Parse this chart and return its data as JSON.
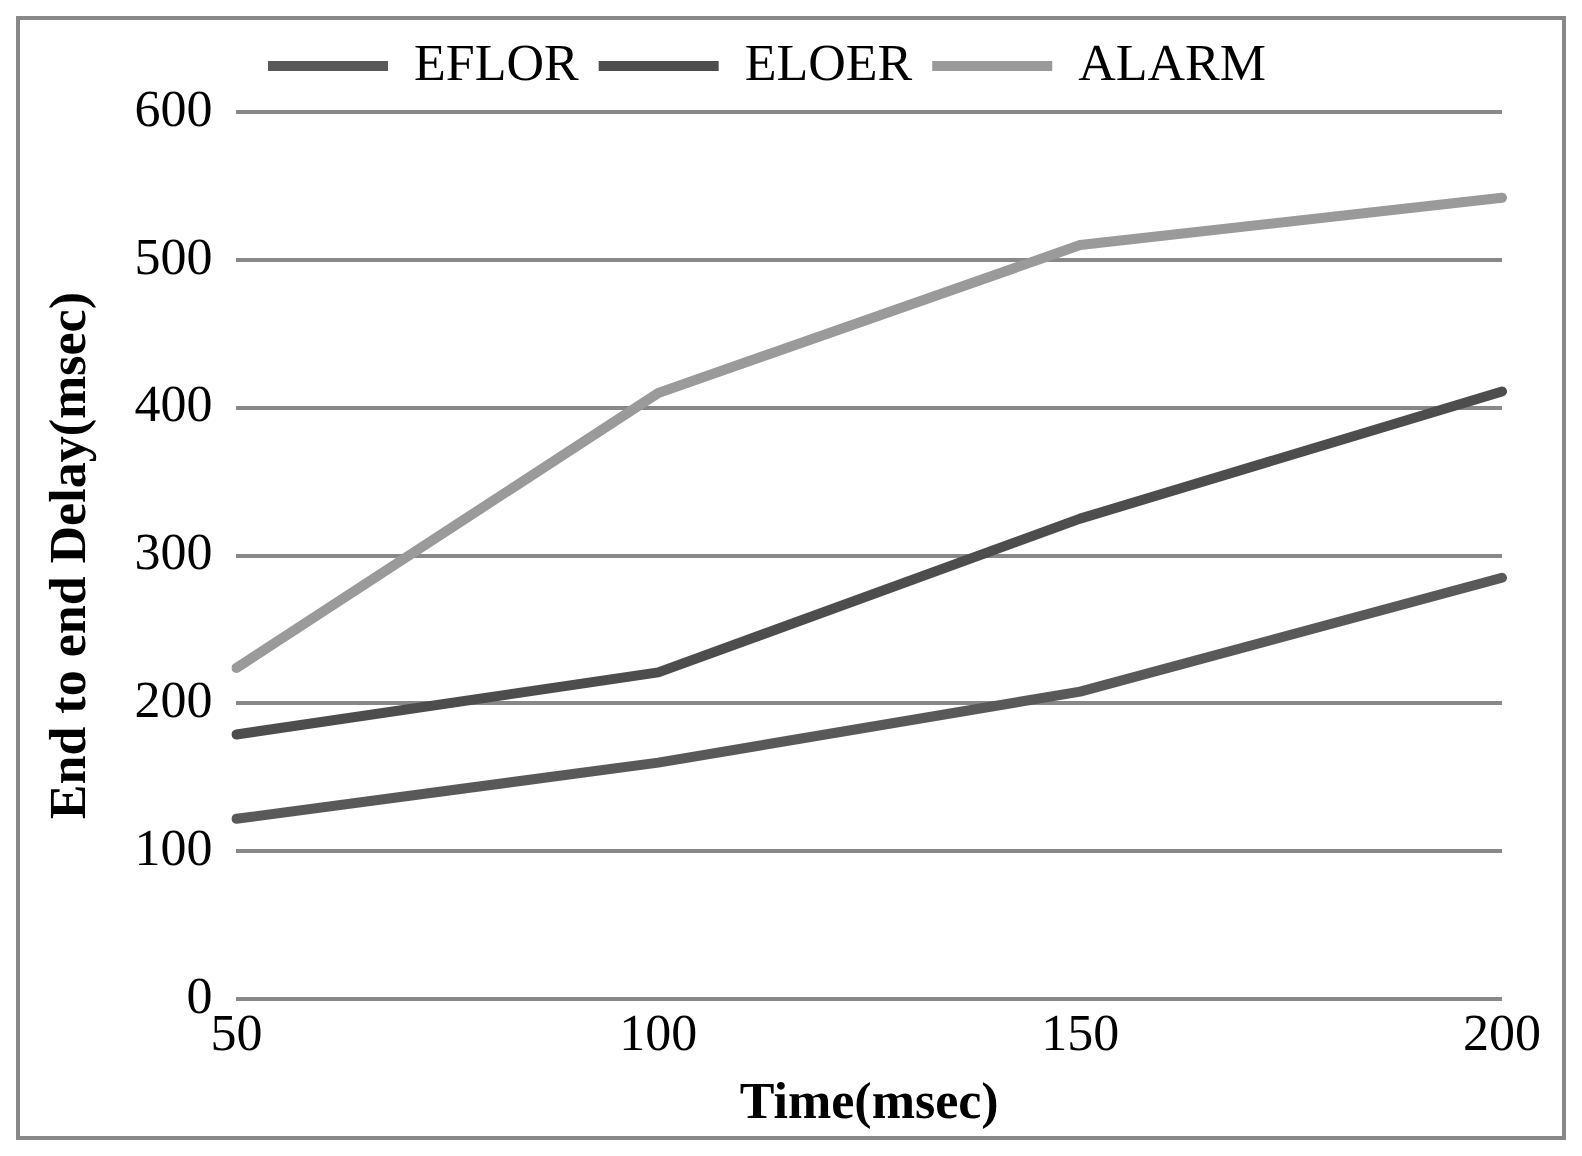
{
  "chart_data": {
    "type": "line",
    "xlabel": "Time(msec)",
    "ylabel": "End to end Delay(msec)",
    "categories": [
      "50",
      "100",
      "150",
      "200"
    ],
    "series": [
      {
        "name": "EFLOR",
        "color": "#595959",
        "values": [
          122,
          160,
          208,
          285
        ]
      },
      {
        "name": "ELOER",
        "color": "#4d4d4d",
        "values": [
          179,
          221,
          325,
          411
        ]
      },
      {
        "name": "ALARM",
        "color": "#9a9a9a",
        "values": [
          224,
          410,
          510,
          542
        ]
      }
    ],
    "ylim": [
      0,
      600
    ],
    "yticks": [
      0,
      100,
      200,
      300,
      400,
      500,
      600
    ],
    "grid": "y",
    "legend": "top",
    "marker": "none",
    "line_style": "solid"
  }
}
